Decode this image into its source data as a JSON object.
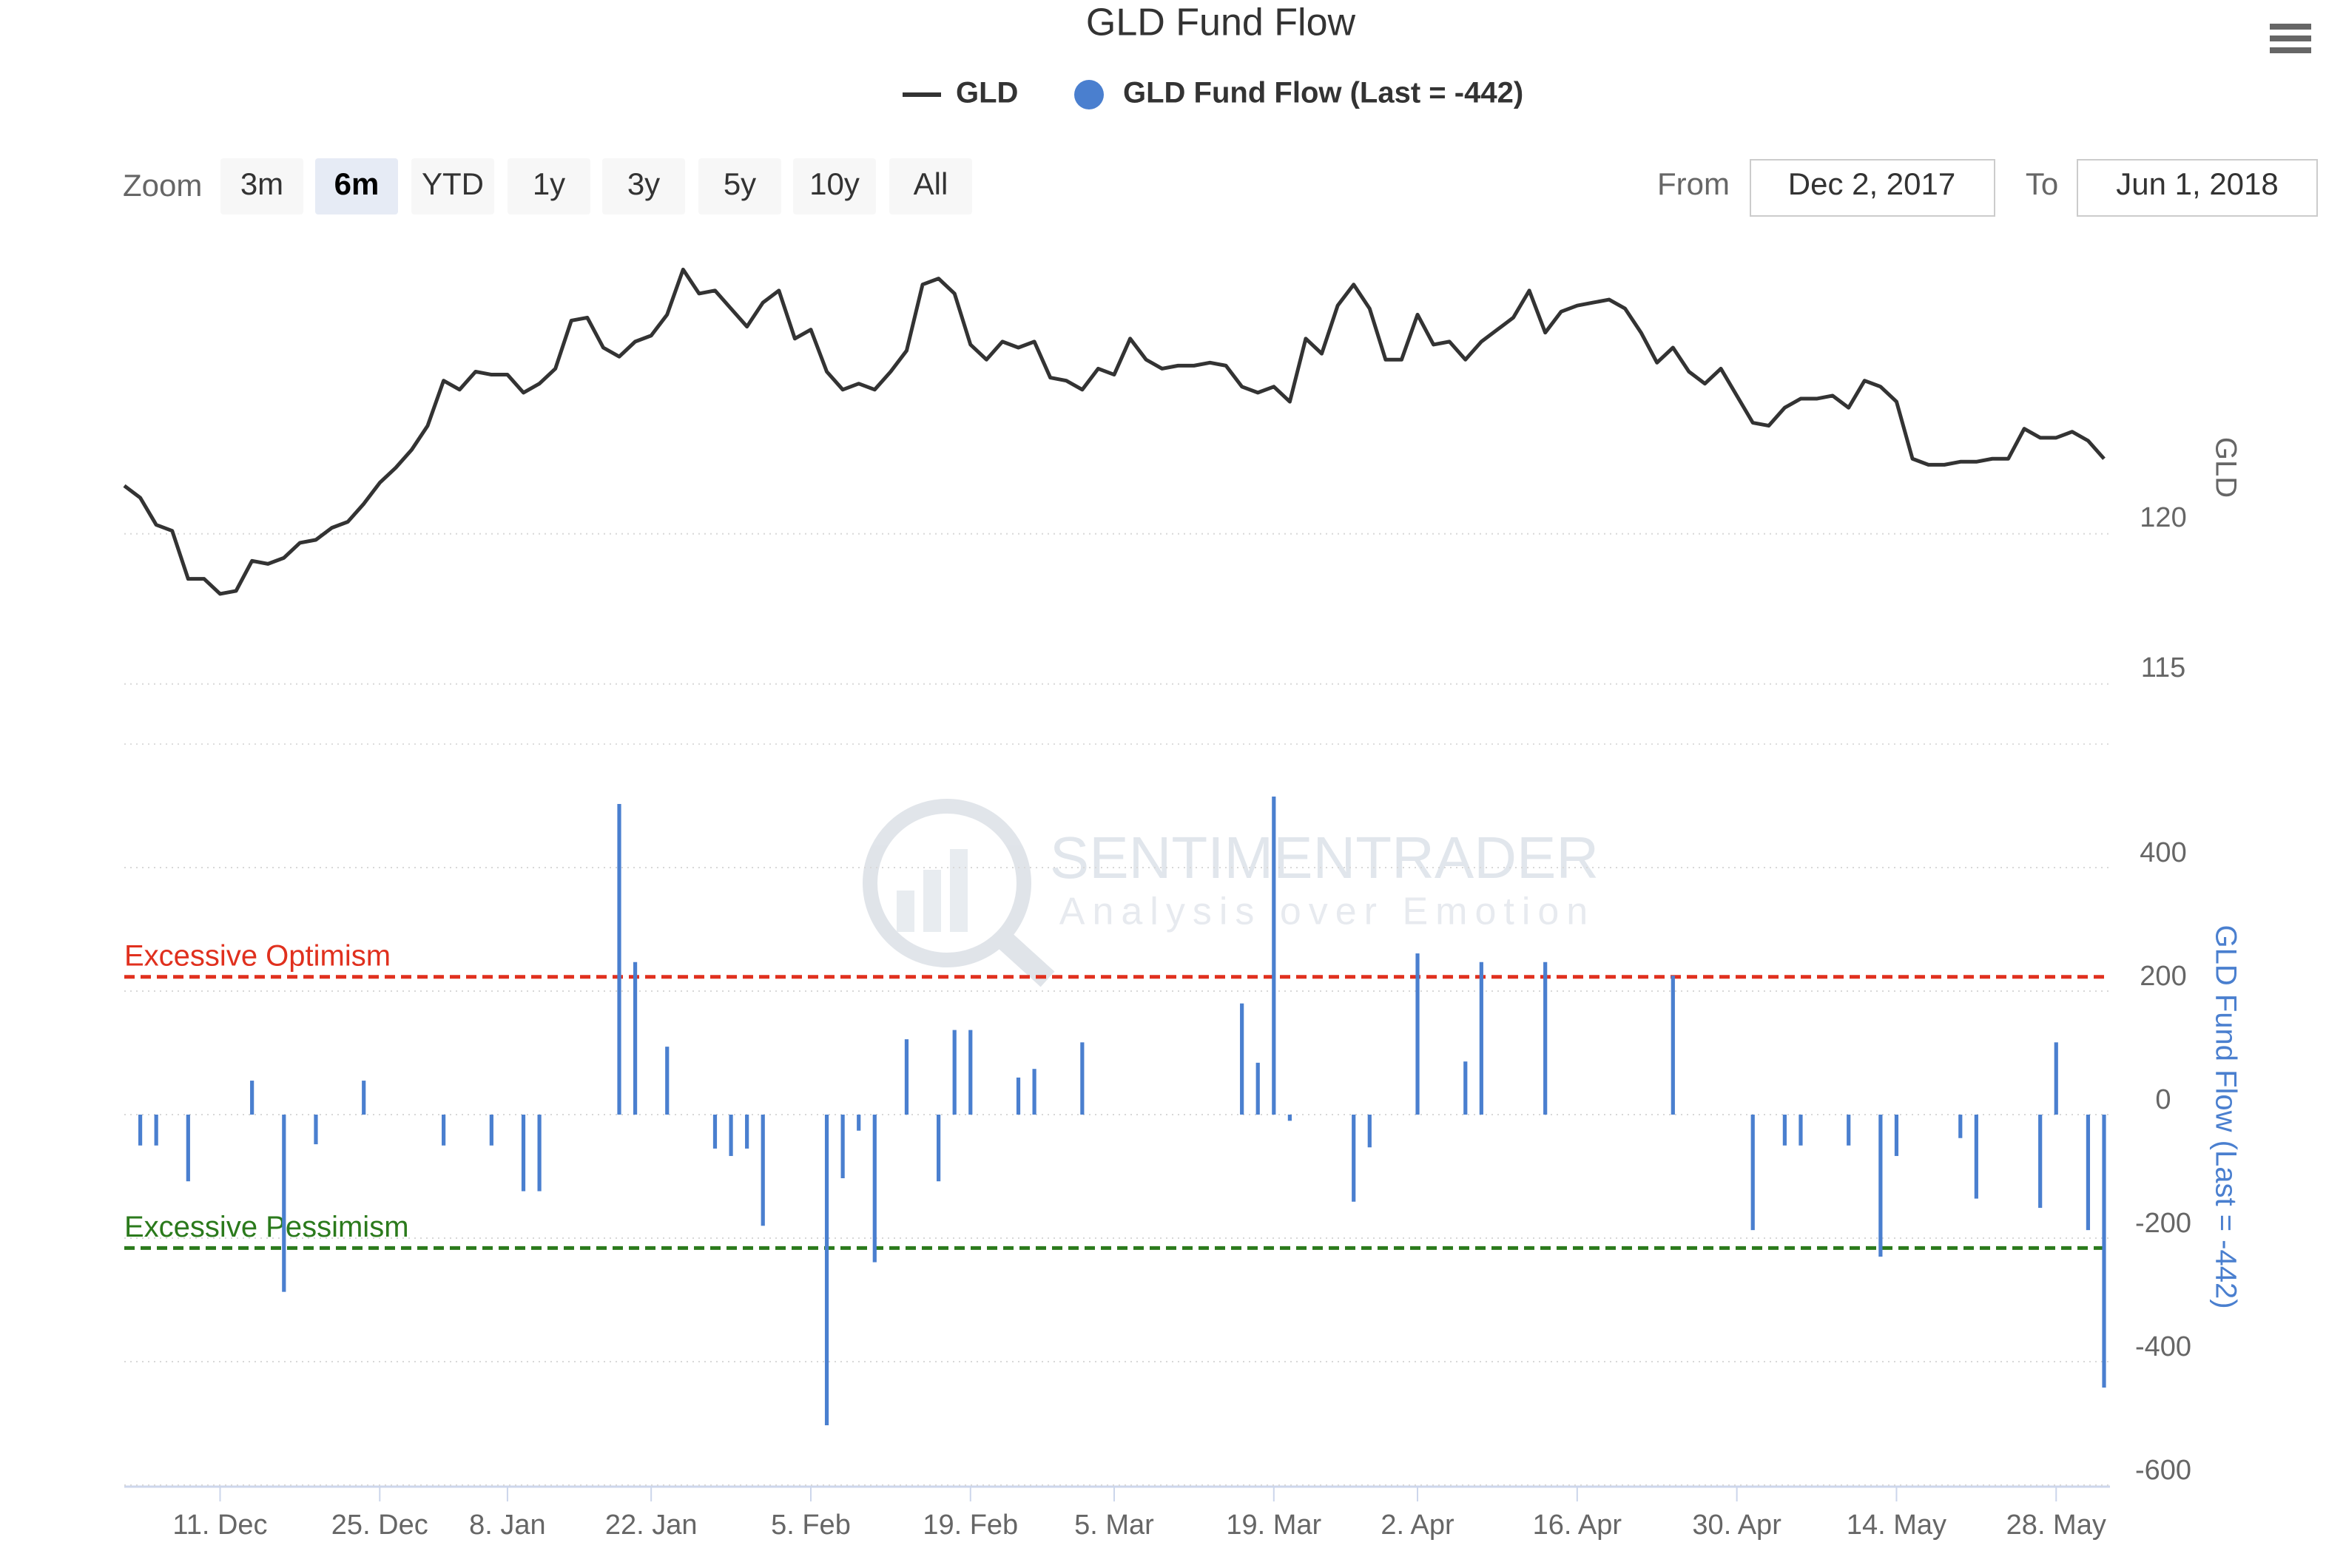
{
  "range_selector": {
    "zoom_label": "Zoom",
    "buttons": [
      "3m",
      "6m",
      "YTD",
      "1y",
      "3y",
      "5y",
      "10y",
      "All"
    ],
    "selected": 1,
    "from_label": "From",
    "from": "Dec 2, 2017",
    "to_label": "To",
    "to": "Jun 1, 2018"
  },
  "watermark": {
    "name": "SENTIMENTRADER",
    "tagline": "Analysis over Emotion"
  },
  "chart_data": {
    "type": "stock",
    "title": "GLD Fund Flow",
    "categories": [
      null,
      null,
      null,
      null,
      null,
      null,
      "11. Dec",
      null,
      null,
      null,
      null,
      null,
      null,
      null,
      null,
      null,
      "25. Dec",
      null,
      null,
      null,
      null,
      null,
      null,
      null,
      "8. Jan",
      null,
      null,
      null,
      null,
      null,
      null,
      null,
      null,
      "22. Jan",
      null,
      null,
      null,
      null,
      null,
      null,
      null,
      null,
      null,
      "5. Feb",
      null,
      null,
      null,
      null,
      null,
      null,
      null,
      null,
      null,
      "19. Feb",
      null,
      null,
      null,
      null,
      null,
      null,
      null,
      null,
      "5. Mar",
      null,
      null,
      null,
      null,
      null,
      null,
      null,
      null,
      null,
      "19. Mar",
      null,
      null,
      null,
      null,
      null,
      null,
      null,
      null,
      "2. Apr",
      null,
      null,
      null,
      null,
      null,
      null,
      null,
      null,
      null,
      "16. Apr",
      null,
      null,
      null,
      null,
      null,
      null,
      null,
      null,
      null,
      "30. Apr",
      null,
      null,
      null,
      null,
      null,
      null,
      null,
      null,
      null,
      "14. May",
      null,
      null,
      null,
      null,
      null,
      null,
      null,
      null,
      null,
      "28. May",
      null,
      null,
      null
    ],
    "series": [
      {
        "name": "GLD",
        "type": "line",
        "color": "#333333",
        "axis": "y",
        "values": [
          121.6,
          121.2,
          120.3,
          120.1,
          118.5,
          118.5,
          118.0,
          118.1,
          119.1,
          119.0,
          119.2,
          119.7,
          119.8,
          120.2,
          120.4,
          121.0,
          121.7,
          122.2,
          122.8,
          123.6,
          125.1,
          124.8,
          125.4,
          125.3,
          125.3,
          124.7,
          125.0,
          125.5,
          127.1,
          127.2,
          126.2,
          125.9,
          126.4,
          126.6,
          127.3,
          128.8,
          128.0,
          128.1,
          127.5,
          126.9,
          127.7,
          128.1,
          126.5,
          126.8,
          125.4,
          124.8,
          125.0,
          124.8,
          125.4,
          126.1,
          128.3,
          128.5,
          128.0,
          126.3,
          125.8,
          126.4,
          126.2,
          126.4,
          125.2,
          125.1,
          124.8,
          125.5,
          125.3,
          126.5,
          125.8,
          125.5,
          125.6,
          125.6,
          125.7,
          125.6,
          124.9,
          124.7,
          124.9,
          124.4,
          126.5,
          126.0,
          127.6,
          128.3,
          127.5,
          125.8,
          125.8,
          127.3,
          126.3,
          126.4,
          125.8,
          126.4,
          126.8,
          127.2,
          128.1,
          126.7,
          127.4,
          127.6,
          127.7,
          127.8,
          127.5,
          126.7,
          125.7,
          126.2,
          125.4,
          125.0,
          125.5,
          124.6,
          123.7,
          123.6,
          124.2,
          124.5,
          124.5,
          124.6,
          124.2,
          125.1,
          124.9,
          124.4,
          122.5,
          122.3,
          122.3,
          122.4,
          122.4,
          122.5,
          122.5,
          123.5,
          123.2,
          123.2,
          123.4,
          123.1,
          122.5
        ]
      },
      {
        "name": "GLD Fund Flow (Last = -442)",
        "type": "bar",
        "color": "#4a7fcf",
        "axis": "y2",
        "values": [
          0,
          -50,
          -50,
          0,
          -108,
          0,
          0,
          0,
          55,
          0,
          -287,
          0,
          -48,
          0,
          0,
          55,
          0,
          0,
          0,
          0,
          -50,
          0,
          0,
          -50,
          0,
          -124,
          -124,
          0,
          0,
          0,
          0,
          503,
          247,
          0,
          110,
          0,
          0,
          -55,
          -67,
          -55,
          -180,
          0,
          0,
          0,
          -503,
          -103,
          -26,
          -239,
          0,
          122,
          0,
          -108,
          137,
          137,
          0,
          0,
          60,
          74,
          0,
          0,
          117,
          0,
          0,
          0,
          0,
          0,
          0,
          0,
          0,
          0,
          180,
          84,
          515,
          -10,
          0,
          0,
          0,
          -141,
          -53,
          0,
          0,
          261,
          0,
          0,
          86,
          247,
          0,
          0,
          0,
          247,
          0,
          0,
          0,
          0,
          0,
          0,
          0,
          225,
          0,
          0,
          0,
          0,
          -187,
          0,
          -50,
          -50,
          0,
          0,
          -50,
          0,
          -230,
          -67,
          0,
          0,
          0,
          -38,
          -136,
          0,
          0,
          0,
          -151,
          117,
          0,
          -187,
          -442
        ]
      }
    ],
    "ylim": [
      113,
      129.5
    ],
    "yticks": [
      115,
      120
    ],
    "y2lim": [
      -600,
      600
    ],
    "y2ticks": [
      -600,
      -400,
      -200,
      0,
      200,
      400
    ],
    "plot_lines": [
      {
        "label": "Excessive Optimism",
        "value": 223,
        "color": "#e0301e"
      },
      {
        "label": "Excessive Pessimism",
        "value": -216,
        "color": "#2b7a1c"
      }
    ],
    "grid": true
  }
}
